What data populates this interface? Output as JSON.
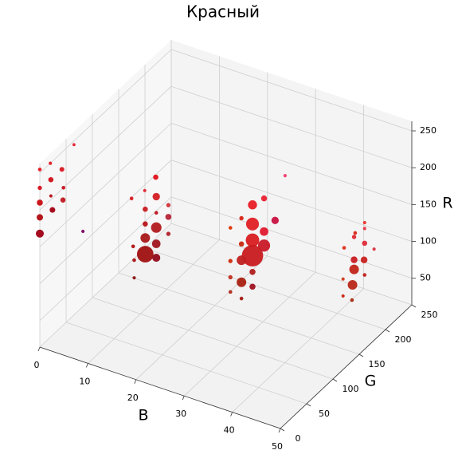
{
  "chart_data": {
    "type": "scatter3d",
    "title": "Красный",
    "xlabel": "B",
    "ylabel": "G",
    "zlabel": "R",
    "xlim": [
      0,
      50
    ],
    "ylim": [
      0,
      250
    ],
    "zlim": [
      14,
      263
    ],
    "xticks": [
      0,
      10,
      20,
      30,
      40,
      50
    ],
    "yticks": [
      0,
      50,
      100,
      150,
      200,
      250
    ],
    "zticks": [
      50,
      100,
      150,
      200,
      250
    ],
    "grid": true,
    "x": [
      0,
      0,
      0,
      0,
      0,
      0,
      0,
      0,
      0,
      0,
      0,
      0,
      0,
      0,
      10,
      10,
      10,
      10,
      10,
      10,
      10,
      10,
      10,
      10,
      10,
      10,
      10,
      10,
      10,
      10,
      10,
      10,
      30,
      30,
      30,
      30,
      30,
      30,
      30,
      30,
      30,
      30,
      30,
      30,
      30,
      30,
      30,
      30,
      30,
      30,
      30,
      30,
      45,
      45,
      45,
      45,
      45,
      45,
      45,
      45,
      45,
      45,
      45,
      45,
      45,
      45,
      45
    ],
    "y": [
      0,
      20,
      42,
      65,
      0,
      21,
      45,
      0,
      21,
      44,
      0,
      24,
      0,
      82,
      129,
      108,
      83,
      130,
      109,
      153,
      130,
      109,
      153,
      130,
      109,
      153,
      130,
      86,
      109,
      130,
      88,
      88,
      192,
      152,
      130,
      173,
      109,
      130,
      152,
      88,
      130,
      152,
      109,
      130,
      109,
      88,
      130,
      109,
      88,
      130,
      88,
      109,
      206,
      188,
      206,
      186,
      206,
      224,
      167,
      186,
      205,
      186,
      206,
      165,
      183,
      165,
      182
    ],
    "z": [
      255,
      250,
      227,
      245,
      230,
      227,
      200,
      210,
      205,
      184,
      190,
      184,
      168,
      116,
      180,
      176,
      182,
      153,
      150,
      126,
      131,
      130,
      110,
      111,
      111,
      87,
      89,
      115,
      89,
      70,
      95,
      71,
      184,
      180,
      186,
      136,
      182,
      160,
      135,
      183,
      138,
      116,
      147,
      117,
      125,
      138,
      95,
      95,
      116,
      75,
      96,
      73,
      144,
      142,
      136,
      138,
      116,
      96,
      136,
      107,
      94,
      94,
      73,
      95,
      75,
      72,
      55
    ],
    "sizes": [
      15,
      12,
      25,
      10,
      20,
      30,
      15,
      40,
      12,
      30,
      45,
      35,
      70,
      12,
      30,
      12,
      15,
      60,
      30,
      20,
      15,
      30,
      40,
      120,
      100,
      20,
      80,
      15,
      300,
      70,
      15,
      12,
      12,
      40,
      90,
      60,
      20,
      180,
      80,
      15,
      200,
      160,
      30,
      500,
      100,
      20,
      40,
      100,
      20,
      40,
      15,
      15,
      12,
      15,
      12,
      20,
      30,
      12,
      15,
      50,
      50,
      100,
      15,
      12,
      100,
      12,
      15
    ],
    "colors": [
      "#e8141e",
      "#e01820",
      "#d81822",
      "#e61e2e",
      "#d8101c",
      "#d01018",
      "#c81020",
      "#c80c10",
      "#b40c14",
      "#c01820",
      "#b00a10",
      "#a00010",
      "#a00014",
      "#7a0060",
      "#e01018",
      "#e22830",
      "#d81820",
      "#d41e24",
      "#c81c20",
      "#d0303a",
      "#c01420",
      "#b81418",
      "#b82438",
      "#b21a1c",
      "#a81818",
      "#b02028",
      "#a0141c",
      "#b01010",
      "#a01010",
      "#900c1c",
      "#a81010",
      "#8c1010",
      "#f03a6a",
      "#e82030",
      "#e81c24",
      "#c81040",
      "#d82010",
      "#e02026",
      "#e01830",
      "#e03000",
      "#d81c20",
      "#c81828",
      "#c82810",
      "#c81a1e",
      "#c02020",
      "#d02808",
      "#b01c1c",
      "#a82010",
      "#c03020",
      "#a01020",
      "#b02818",
      "#a01c10",
      "#e83028",
      "#d82818",
      "#e83040",
      "#e02830",
      "#e02838",
      "#d83040",
      "#e03020",
      "#c81c24",
      "#c82020",
      "#c02418",
      "#c02020",
      "#d03818",
      "#b82818",
      "#c82410",
      "#a82810"
    ]
  }
}
